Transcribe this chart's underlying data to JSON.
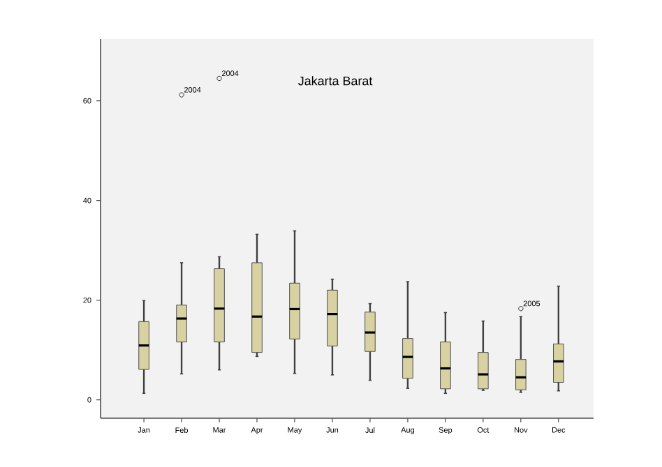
{
  "chart_data": {
    "type": "box",
    "title": "Jakarta Barat",
    "categories": [
      "Jan",
      "Feb",
      "Mar",
      "Apr",
      "May",
      "Jun",
      "Jul",
      "Aug",
      "Sep",
      "Oct",
      "Nov",
      "Dec"
    ],
    "color": "#d8d2a2",
    "boxes": [
      {
        "low": 1.3,
        "q1": 6.1,
        "median": 10.9,
        "q3": 15.7,
        "high": 19.9
      },
      {
        "low": 5.2,
        "q1": 11.6,
        "median": 16.3,
        "q3": 19.0,
        "high": 27.5,
        "outliers": [
          61.2
        ]
      },
      {
        "low": 6.0,
        "q1": 11.6,
        "median": 18.3,
        "q3": 26.3,
        "high": 28.7,
        "outliers": [
          64.5
        ]
      },
      {
        "low": 8.7,
        "q1": 9.5,
        "median": 16.7,
        "q3": 27.5,
        "high": 33.2
      },
      {
        "low": 5.3,
        "q1": 12.2,
        "median": 18.2,
        "q3": 23.4,
        "high": 33.9
      },
      {
        "low": 5.0,
        "q1": 10.8,
        "median": 17.2,
        "q3": 22.0,
        "high": 24.2
      },
      {
        "low": 3.9,
        "q1": 9.7,
        "median": 13.5,
        "q3": 17.6,
        "high": 19.3
      },
      {
        "low": 2.3,
        "q1": 4.3,
        "median": 8.6,
        "q3": 12.3,
        "high": 23.7
      },
      {
        "low": 1.3,
        "q1": 2.2,
        "median": 6.3,
        "q3": 11.6,
        "high": 17.5
      },
      {
        "low": 1.9,
        "q1": 2.2,
        "median": 5.1,
        "q3": 9.5,
        "high": 15.8
      },
      {
        "low": 1.5,
        "q1": 2.0,
        "median": 4.5,
        "q3": 8.1,
        "high": 16.7,
        "outliers": [
          18.3
        ]
      },
      {
        "low": 1.8,
        "q1": 3.5,
        "median": 7.7,
        "q3": 11.2,
        "high": 22.8
      }
    ],
    "annotations": [
      "2004",
      "2004",
      "2005"
    ],
    "ylim": [
      -3.7,
      72.4
    ],
    "yticks": [
      0,
      20,
      40,
      60
    ],
    "grid": false
  }
}
